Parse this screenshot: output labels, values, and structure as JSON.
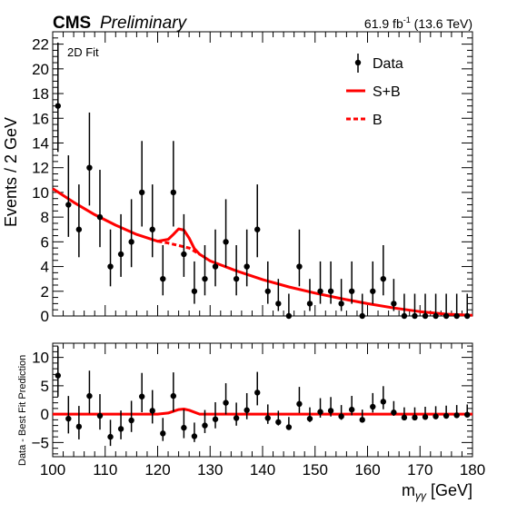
{
  "header": {
    "experiment": "CMS",
    "status": "Preliminary",
    "lumi": "61.9 fb",
    "lumi_exp": "-1",
    "energy": " (13.6 TeV)"
  },
  "fit_label": "2D Fit",
  "legend": {
    "data": "Data",
    "sb": "S+B",
    "b": "B"
  },
  "colors": {
    "fit": "#ff0000",
    "data": "#000000"
  },
  "chart_data": [
    {
      "type": "scatter",
      "panel": "main",
      "ylabel": "Events / 2 GeV",
      "xlim": [
        100,
        180
      ],
      "ylim": [
        0,
        23
      ],
      "x_ticks": [
        100,
        110,
        120,
        130,
        140,
        150,
        160,
        170,
        180
      ],
      "y_ticks": [
        0,
        2,
        4,
        6,
        8,
        10,
        12,
        14,
        16,
        18,
        20,
        22
      ],
      "y_tick_labels": [
        "0",
        "2",
        "4",
        "6",
        "8",
        "10",
        "12",
        "14",
        "16",
        "18",
        "20",
        "22"
      ],
      "series": [
        {
          "name": "Data",
          "x": [
            101,
            103,
            105,
            107,
            109,
            111,
            113,
            115,
            117,
            119,
            121,
            123,
            125,
            127,
            129,
            131,
            133,
            135,
            137,
            139,
            141,
            143,
            145,
            147,
            149,
            151,
            153,
            155,
            157,
            159,
            161,
            163,
            165,
            167,
            169,
            171,
            173,
            175,
            177,
            179
          ],
          "y": [
            17,
            9,
            7,
            12,
            8,
            4,
            5,
            6,
            10,
            7,
            3,
            10,
            5,
            2,
            3,
            4,
            6,
            3,
            4,
            7,
            2,
            1,
            0,
            4,
            1,
            2,
            2,
            1,
            2,
            0,
            2,
            3,
            1,
            0,
            0,
            0,
            0,
            0,
            0,
            0
          ]
        },
        {
          "name": "S+B",
          "x": [
            100,
            104,
            108,
            112,
            116,
            120,
            122,
            123,
            124,
            125,
            126,
            127,
            128,
            130,
            135,
            140,
            145,
            150,
            155,
            160,
            165,
            170,
            175,
            180
          ],
          "y": [
            10.3,
            9.2,
            8.2,
            7.35,
            6.6,
            6.05,
            6.2,
            6.6,
            7.05,
            6.95,
            6.3,
            5.45,
            5.0,
            4.45,
            3.65,
            2.95,
            2.35,
            1.85,
            1.4,
            1.0,
            0.65,
            0.35,
            0.15,
            0.05
          ]
        },
        {
          "name": "B",
          "x": [
            120,
            122,
            124,
            126,
            128
          ],
          "y": [
            6.05,
            5.9,
            5.7,
            5.5,
            5.0
          ]
        }
      ]
    },
    {
      "type": "scatter",
      "panel": "ratio",
      "ylabel": "Data - Best Fit Prediction",
      "xlabel_main": "m",
      "xlabel_sub": "γγ",
      "xlabel_unit": " [GeV]",
      "xlim": [
        100,
        180
      ],
      "ylim": [
        -7.5,
        12.5
      ],
      "x_ticks": [
        100,
        110,
        120,
        130,
        140,
        150,
        160,
        170,
        180
      ],
      "x_tick_labels": [
        "100",
        "110",
        "120",
        "130",
        "140",
        "150",
        "160",
        "170",
        "180"
      ],
      "y_ticks": [
        -5,
        0,
        5,
        10
      ],
      "y_tick_labels": [
        "−5",
        "0",
        "5",
        "10"
      ],
      "series": [
        {
          "name": "Data",
          "x": [
            101,
            103,
            105,
            107,
            109,
            111,
            113,
            115,
            117,
            119,
            121,
            123,
            125,
            127,
            129,
            131,
            133,
            135,
            137,
            139,
            141,
            143,
            145,
            147,
            149,
            151,
            153,
            155,
            157,
            159,
            161,
            163,
            165,
            167,
            169,
            171,
            173,
            175,
            177,
            179
          ],
          "y": [
            6.8,
            -0.8,
            -2.2,
            3.2,
            -0.3,
            -4.0,
            -2.6,
            -1.1,
            3.1,
            0.6,
            -3.4,
            3.2,
            -2.4,
            -3.9,
            -2.0,
            -0.9,
            2.0,
            -0.7,
            0.7,
            3.8,
            -0.7,
            -1.4,
            -2.3,
            1.8,
            -0.8,
            0.4,
            0.6,
            -0.4,
            0.8,
            -1.0,
            1.3,
            2.2,
            0.3,
            -0.6,
            -0.6,
            -0.5,
            -0.4,
            -0.3,
            -0.2,
            -0.1
          ]
        },
        {
          "name": "S+B",
          "x": [
            100,
            120,
            122,
            124,
            125,
            126,
            128,
            180
          ],
          "y": [
            0,
            0,
            0.2,
            0.8,
            0.9,
            0.7,
            0,
            0
          ]
        }
      ]
    }
  ]
}
